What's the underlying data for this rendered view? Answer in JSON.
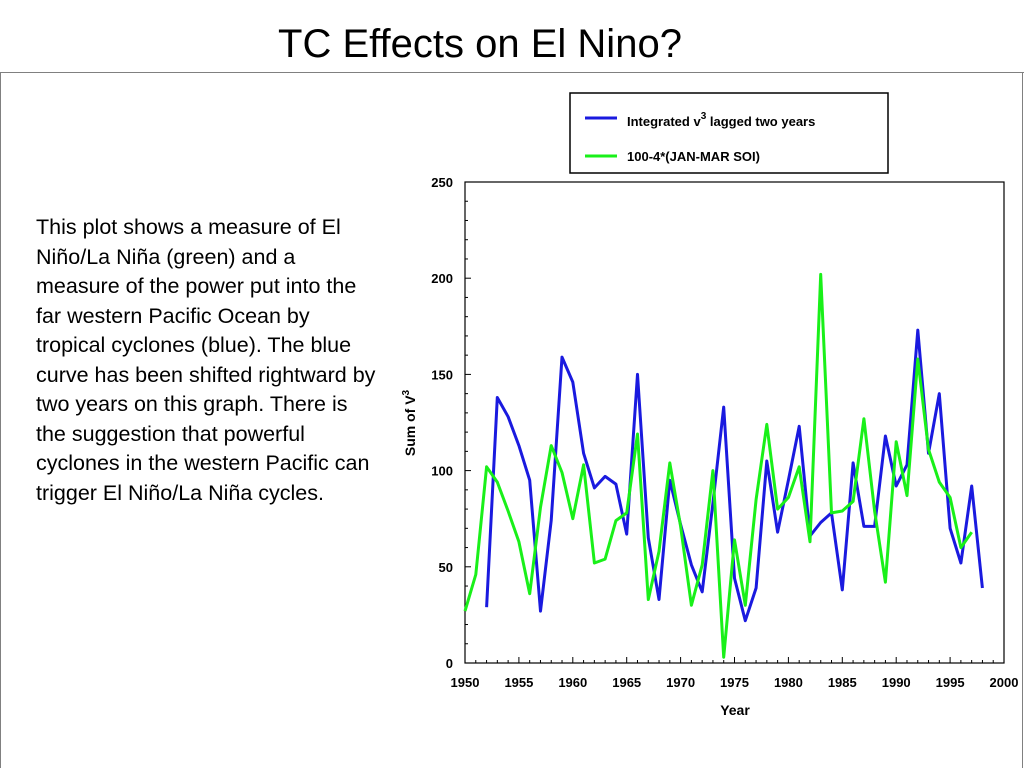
{
  "slide": {
    "title": "TC Effects on El Nino?",
    "body": "This plot shows a measure of El Niño/La Niña (green) and a measure of the power put into the far western Pacific Ocean by tropical cyclones (blue). The blue curve has been shifted rightward by two years on this graph. There is the suggestion that powerful cyclones in the western Pacific can trigger El Niño/La Niña cycles."
  },
  "chart_data": {
    "type": "line",
    "title": "",
    "xlabel": "Year",
    "ylabel": "Sum of V3",
    "xlim": [
      1950,
      2000
    ],
    "ylim": [
      0,
      250
    ],
    "x_ticks": [
      "1950",
      "1955",
      "1960",
      "1965",
      "1970",
      "1975",
      "1980",
      "1985",
      "1990",
      "1995",
      "2000"
    ],
    "y_ticks": [
      "0",
      "50",
      "100",
      "150",
      "200",
      "250"
    ],
    "grid": false,
    "legend_placement": "top-right (above plot)",
    "series": [
      {
        "name": "Integrated v3  lagged two years",
        "color": "#1a1adf",
        "x": [
          1952,
          1953,
          1954,
          1955,
          1956,
          1957,
          1958,
          1959,
          1960,
          1961,
          1962,
          1963,
          1964,
          1965,
          1966,
          1967,
          1968,
          1969,
          1970,
          1971,
          1972,
          1973,
          1974,
          1975,
          1976,
          1977,
          1978,
          1979,
          1980,
          1981,
          1982,
          1983,
          1984,
          1985,
          1986,
          1987,
          1988,
          1989,
          1990,
          1991,
          1992,
          1993,
          1994,
          1995,
          1996,
          1997,
          1998
        ],
        "y": [
          29,
          138,
          128,
          113,
          95,
          27,
          74,
          159,
          146,
          109,
          91,
          97,
          93,
          67,
          150,
          65,
          33,
          95,
          72,
          51,
          37,
          83,
          133,
          44,
          22,
          39,
          105,
          68,
          95,
          123,
          66,
          73,
          78,
          38,
          104,
          71,
          71,
          118,
          92,
          103,
          173,
          109,
          140,
          70,
          52,
          92,
          39
        ]
      },
      {
        "name": "100-4*(JAN-MAR SOI)",
        "color": "#19f019",
        "x": [
          1950,
          1951,
          1952,
          1953,
          1954,
          1955,
          1956,
          1957,
          1958,
          1959,
          1960,
          1961,
          1962,
          1963,
          1964,
          1965,
          1966,
          1967,
          1968,
          1969,
          1970,
          1971,
          1972,
          1973,
          1974,
          1975,
          1976,
          1977,
          1978,
          1979,
          1980,
          1981,
          1982,
          1983,
          1984,
          1985,
          1986,
          1987,
          1988,
          1989,
          1990,
          1991,
          1992,
          1993,
          1994,
          1995,
          1996,
          1997
        ],
        "y": [
          27,
          46,
          102,
          94,
          79,
          63,
          36,
          81,
          113,
          99,
          75,
          103,
          52,
          54,
          74,
          78,
          119,
          33,
          58,
          104,
          71,
          30,
          51,
          100,
          3,
          64,
          30,
          85,
          124,
          80,
          86,
          102,
          63,
          202,
          78,
          79,
          84,
          127,
          79,
          42,
          115,
          87,
          158,
          111,
          94,
          86,
          60,
          68
        ]
      }
    ]
  }
}
